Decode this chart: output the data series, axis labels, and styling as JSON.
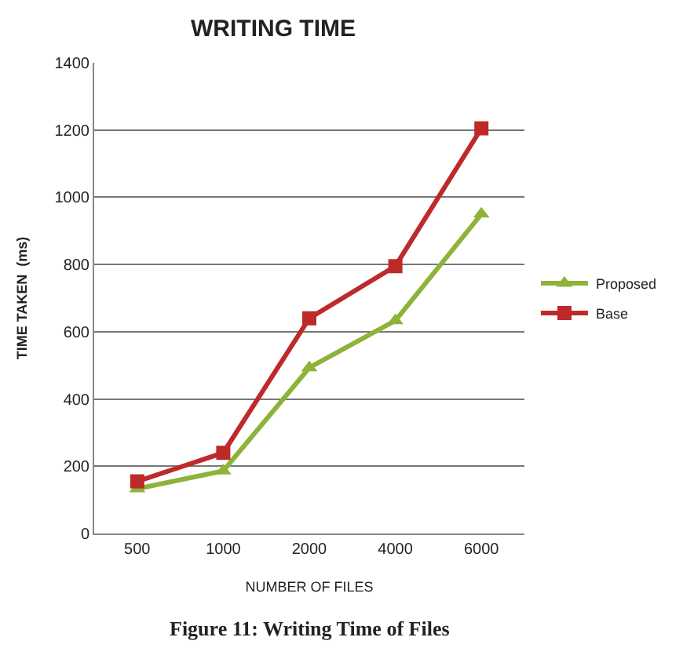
{
  "chart_data": {
    "type": "line",
    "title": "WRITING TIME",
    "xlabel": "NUMBER OF FILES",
    "ylabel": "TIME TAKEN  (ms)",
    "categories": [
      "500",
      "1000",
      "2000",
      "4000",
      "6000"
    ],
    "series": [
      {
        "name": "Proposed",
        "color": "#8db33a",
        "marker": "triangle",
        "values": [
          133,
          186,
          493,
          633,
          950
        ]
      },
      {
        "name": "Base",
        "color": "#be2a2a",
        "marker": "square",
        "values": [
          155,
          240,
          640,
          795,
          1205
        ]
      }
    ],
    "ylim": [
      0,
      1400
    ],
    "yticks": [
      0,
      200,
      400,
      600,
      800,
      1000,
      1200,
      1400
    ],
    "grid": "y",
    "legend": "right",
    "annotations": [
      "Figure 11: Writing Time of Files"
    ]
  }
}
